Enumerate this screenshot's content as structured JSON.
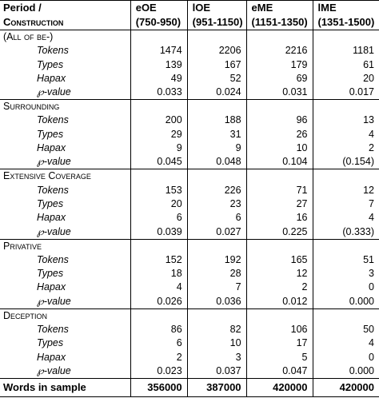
{
  "header": {
    "period_label": "Period /",
    "construction_label": "Construction",
    "columns": [
      {
        "name": "eOE",
        "range": "(750-950)"
      },
      {
        "name": "lOE",
        "range": "(951-1150)"
      },
      {
        "name": "eME",
        "range": "(1151-1350)"
      },
      {
        "name": "lME",
        "range": "(1351-1500)"
      }
    ]
  },
  "groups": [
    {
      "label": "(All of be-)",
      "rows": [
        {
          "label": "Tokens",
          "values": [
            "1474",
            "2206",
            "2216",
            "1181"
          ]
        },
        {
          "label": "Types",
          "values": [
            "139",
            "167",
            "179",
            "61"
          ]
        },
        {
          "label": "Hapax",
          "values": [
            "49",
            "52",
            "69",
            "20"
          ]
        },
        {
          "label": "℘-value",
          "values": [
            "0.033",
            "0.024",
            "0.031",
            "0.017"
          ]
        }
      ]
    },
    {
      "label": "Surrounding",
      "rows": [
        {
          "label": "Tokens",
          "values": [
            "200",
            "188",
            "96",
            "13"
          ]
        },
        {
          "label": "Types",
          "values": [
            "29",
            "31",
            "26",
            "4"
          ]
        },
        {
          "label": "Hapax",
          "values": [
            "9",
            "9",
            "10",
            "2"
          ]
        },
        {
          "label": "℘-value",
          "values": [
            "0.045",
            "0.048",
            "0.104",
            "(0.154)"
          ]
        }
      ]
    },
    {
      "label": "Extensive Coverage",
      "rows": [
        {
          "label": "Tokens",
          "values": [
            "153",
            "226",
            "71",
            "12"
          ]
        },
        {
          "label": "Types",
          "values": [
            "20",
            "23",
            "27",
            "7"
          ]
        },
        {
          "label": "Hapax",
          "values": [
            "6",
            "6",
            "16",
            "4"
          ]
        },
        {
          "label": "℘-value",
          "values": [
            "0.039",
            "0.027",
            "0.225",
            "(0.333)"
          ]
        }
      ]
    },
    {
      "label": "Privative",
      "rows": [
        {
          "label": "Tokens",
          "values": [
            "152",
            "192",
            "165",
            "51"
          ]
        },
        {
          "label": "Types",
          "values": [
            "18",
            "28",
            "12",
            "3"
          ]
        },
        {
          "label": "Hapax",
          "values": [
            "4",
            "7",
            "2",
            "0"
          ]
        },
        {
          "label": "℘-value",
          "values": [
            "0.026",
            "0.036",
            "0.012",
            "0.000"
          ]
        }
      ]
    },
    {
      "label": "Deception",
      "rows": [
        {
          "label": "Tokens",
          "values": [
            "86",
            "82",
            "106",
            "50"
          ]
        },
        {
          "label": "Types",
          "values": [
            "6",
            "10",
            "17",
            "4"
          ]
        },
        {
          "label": "Hapax",
          "values": [
            "2",
            "3",
            "5",
            "0"
          ]
        },
        {
          "label": "℘-value",
          "values": [
            "0.023",
            "0.037",
            "0.047",
            "0.000"
          ]
        }
      ]
    }
  ],
  "total": {
    "label": "Words in sample",
    "values": [
      "356000",
      "387000",
      "420000",
      "420000"
    ]
  }
}
